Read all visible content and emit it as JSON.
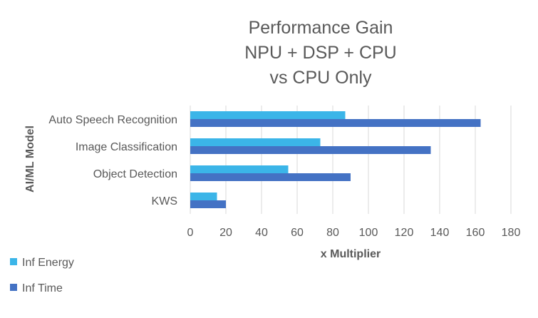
{
  "chart_data": {
    "type": "bar",
    "orientation": "horizontal",
    "title_lines": [
      "Performance Gain",
      "NPU + DSP + CPU",
      "vs CPU Only"
    ],
    "xlabel": "x Multiplier",
    "ylabel": "AI/ML Model",
    "categories": [
      "Auto Speech Recognition",
      "Image Classification",
      "Object Detection",
      "KWS"
    ],
    "series": [
      {
        "name": "Inf Energy",
        "color": "#3BB5E8",
        "values": [
          87,
          73,
          55,
          15
        ]
      },
      {
        "name": "Inf Time",
        "color": "#4472C4",
        "values": [
          163,
          135,
          90,
          20
        ]
      }
    ],
    "xlim": [
      0,
      180
    ],
    "xticks": [
      "0",
      "20",
      "40",
      "60",
      "80",
      "100",
      "120",
      "140",
      "160",
      "180"
    ],
    "grid": true,
    "legend_position": "bottom-left",
    "colors": {
      "gridline": "#D9D9D9",
      "text": "#595959",
      "title": "#595959"
    }
  }
}
